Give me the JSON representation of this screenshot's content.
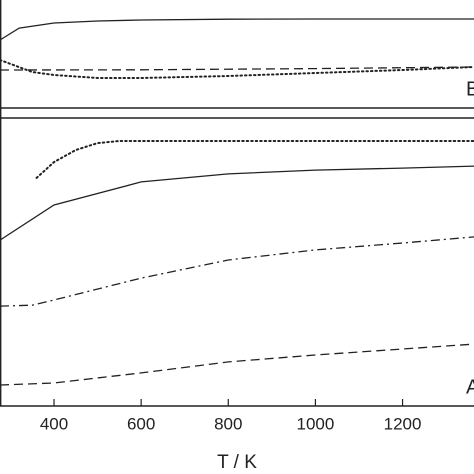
{
  "chart_data": [
    {
      "type": "line",
      "panel_label": "B",
      "xlim": [
        276,
        1364
      ],
      "ylim": [
        0,
        100
      ],
      "series": [
        {
          "style": "solid",
          "color": "#222222",
          "x": [
            276,
            320,
            400,
            500,
            600,
            800,
            1000,
            1200,
            1364
          ],
          "values": [
            63,
            74,
            78.7,
            80.6,
            81.5,
            82.2,
            82.4,
            82.4,
            82.4
          ]
        },
        {
          "style": "dashed",
          "color": "#222222",
          "x": [
            276,
            600,
            1000,
            1364
          ],
          "values": [
            35.2,
            35.4,
            36.5,
            38
          ]
        },
        {
          "style": "dotted",
          "color": "#222222",
          "x": [
            276,
            350,
            400,
            500,
            600,
            800,
            1000,
            1200,
            1364
          ],
          "values": [
            44.4,
            33.3,
            30.6,
            27.8,
            27.8,
            29.6,
            32.4,
            35.2,
            38
          ]
        }
      ]
    },
    {
      "type": "line",
      "panel_label": "A",
      "xlim": [
        276,
        1364
      ],
      "ylim": [
        0,
        100
      ],
      "xticks": [
        400,
        600,
        800,
        1000,
        1200
      ],
      "xlabel": "T / K",
      "series": [
        {
          "style": "dotted",
          "color": "#222222",
          "x": [
            360,
            400,
            450,
            500,
            550,
            800,
            1000,
            1200,
            1364
          ],
          "values": [
            79.2,
            84.7,
            88.9,
            91.3,
            92,
            92,
            92,
            92,
            92
          ]
        },
        {
          "style": "solid",
          "color": "#222222",
          "x": [
            276,
            400,
            600,
            800,
            1000,
            1200,
            1364
          ],
          "values": [
            57.6,
            69.8,
            77.8,
            80.6,
            81.9,
            82.6,
            83.3
          ]
        },
        {
          "style": "dashdot",
          "color": "#222222",
          "x": [
            276,
            350,
            400,
            600,
            800,
            1000,
            1200,
            1364
          ],
          "values": [
            34.7,
            35,
            36.8,
            44.4,
            50.7,
            54.2,
            56.6,
            58.7
          ]
        },
        {
          "style": "dashed",
          "color": "#222222",
          "x": [
            276,
            400,
            600,
            800,
            1000,
            1200,
            1364
          ],
          "values": [
            7.3,
            8,
            11.5,
            15.3,
            17.7,
            19.8,
            21.5
          ]
        }
      ]
    }
  ]
}
